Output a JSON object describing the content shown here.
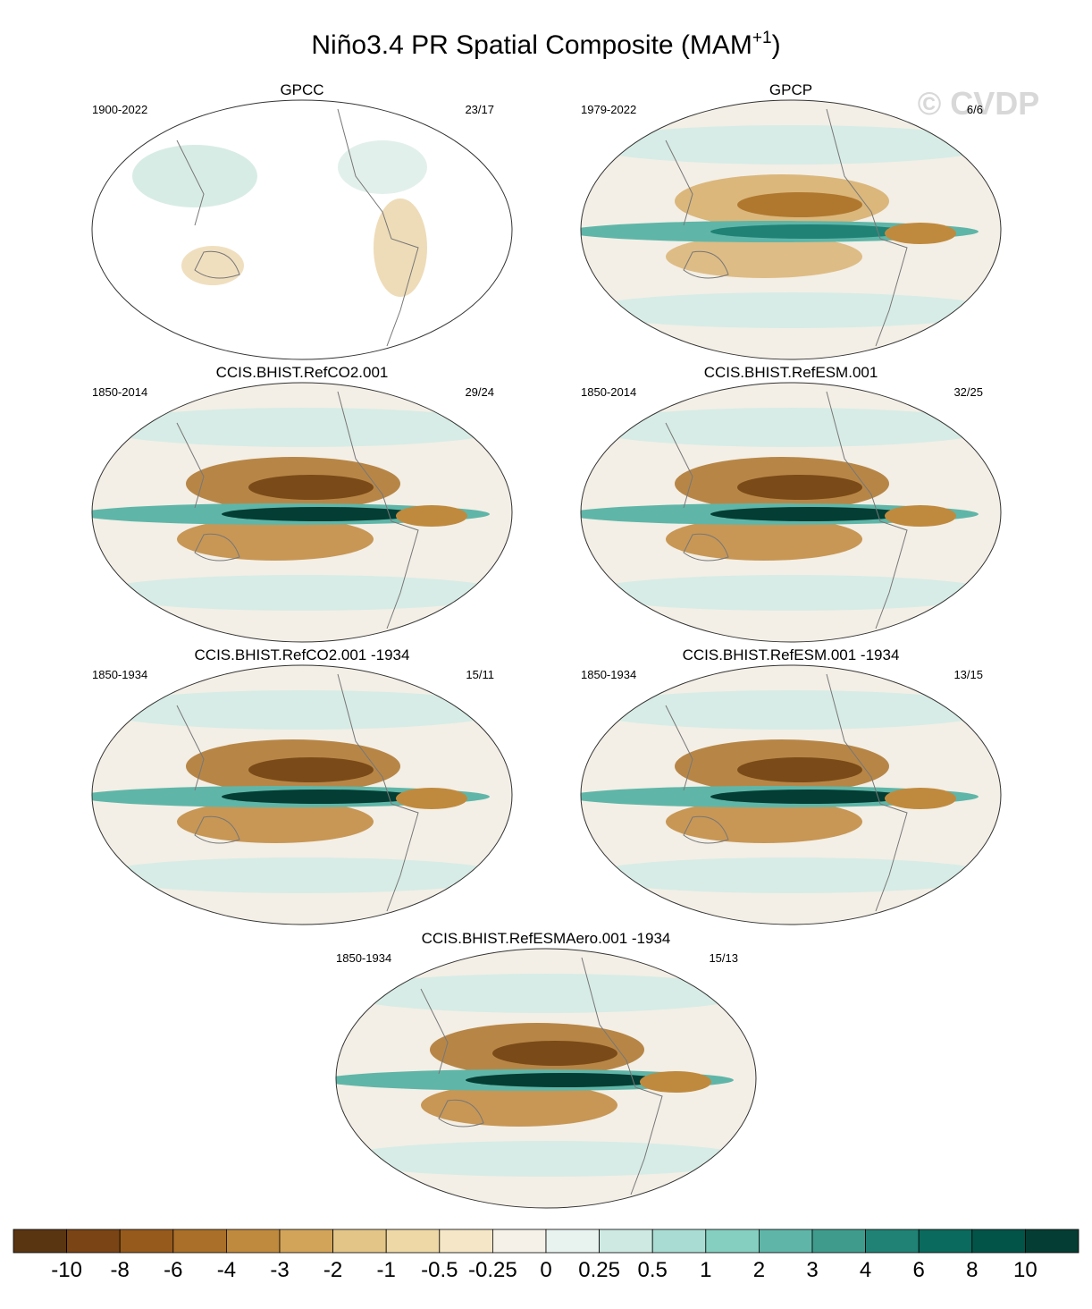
{
  "title": {
    "main": "Niño3.4 PR Spatial Composite (MAM",
    "superscript": "+1",
    "end": ")"
  },
  "watermark": "© CVDP",
  "panels": [
    {
      "title": "GPCC",
      "years": "1900-2022",
      "count": "23/17"
    },
    {
      "title": "GPCP",
      "years": "1979-2022",
      "count": "6/6"
    },
    {
      "title": "CCIS.BHIST.RefCO2.001",
      "years": "1850-2014",
      "count": "29/24"
    },
    {
      "title": "CCIS.BHIST.RefESM.001",
      "years": "1850-2014",
      "count": "32/25"
    },
    {
      "title": "CCIS.BHIST.RefCO2.001 -1934",
      "years": "1850-1934",
      "count": "15/11"
    },
    {
      "title": "CCIS.BHIST.RefESM.001 -1934",
      "years": "1850-1934",
      "count": "13/15"
    },
    {
      "title": "CCIS.BHIST.RefESMAero.001 -1934",
      "years": "1850-1934",
      "count": "15/13"
    }
  ],
  "colorbar": {
    "colors": [
      "#5a3512",
      "#7a4414",
      "#965a1c",
      "#aa6f28",
      "#c08a3e",
      "#d2a45a",
      "#e2c587",
      "#eed8a6",
      "#f4e6c6",
      "#f6f1e8",
      "#e8f3f0",
      "#cde9e2",
      "#a9ddd4",
      "#85cfc0",
      "#5fb6a8",
      "#3f9c8d",
      "#1f8275",
      "#0a6a5d",
      "#035448",
      "#043d33"
    ],
    "ticks": [
      -10,
      -8,
      -6,
      -4,
      -3,
      -2,
      -1,
      -0.5,
      -0.25,
      0,
      0.25,
      0.5,
      1,
      2,
      3,
      4,
      6,
      8,
      10
    ]
  }
}
